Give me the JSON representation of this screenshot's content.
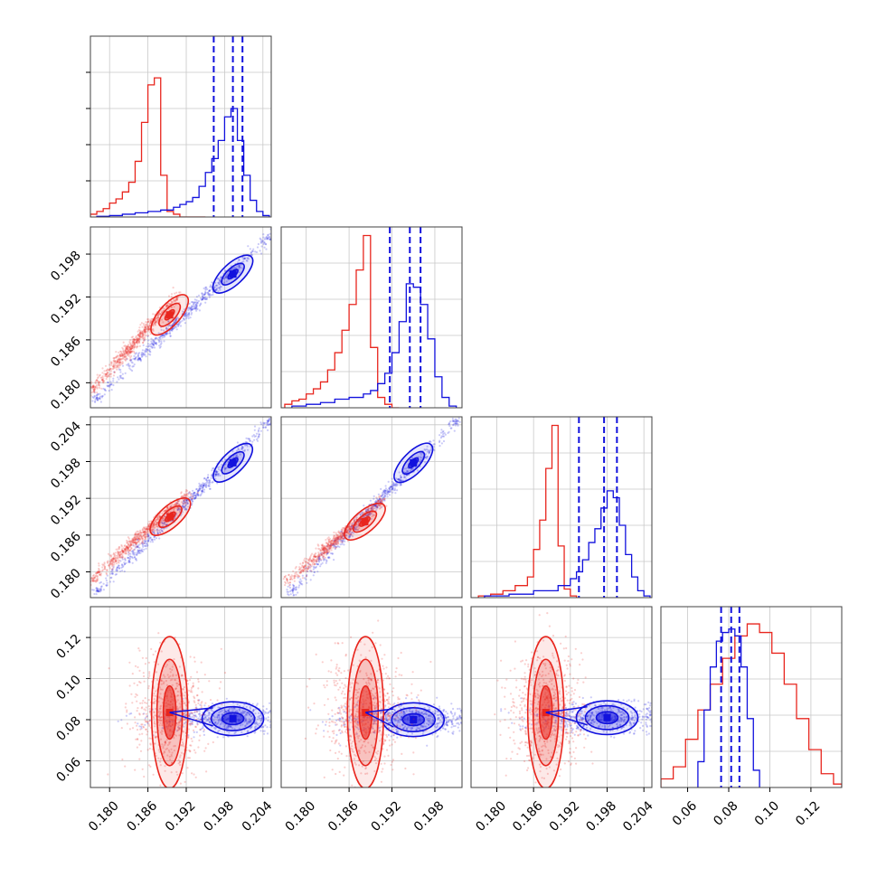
{
  "colors": {
    "red": "#e8261e",
    "blue": "#1111dd",
    "grid": "#c8c8c8",
    "frame": "#404040"
  },
  "chart_data": {
    "type": "corner",
    "grid": true,
    "axes": {
      "ax0": {
        "range": [
          0.177,
          0.2053
        ],
        "ticks": [
          "0.180",
          "0.186",
          "0.192",
          "0.198",
          "0.204"
        ],
        "tick_values": [
          0.18,
          0.186,
          0.192,
          0.198,
          0.204
        ]
      },
      "ax1": {
        "range": [
          0.1765,
          0.2018
        ],
        "ticks": [
          "0.180",
          "0.186",
          "0.192",
          "0.198"
        ],
        "tick_values": [
          0.18,
          0.186,
          0.192,
          0.198
        ]
      },
      "ax2": {
        "range": [
          0.1758,
          0.2053
        ],
        "ticks": [
          "0.180",
          "0.186",
          "0.192",
          "0.198",
          "0.204"
        ],
        "tick_values": [
          0.18,
          0.186,
          0.192,
          0.198,
          0.204
        ]
      },
      "ax3": {
        "range": [
          0.047,
          0.135
        ],
        "ticks": [
          "0.06",
          "0.08",
          "0.10",
          "0.12"
        ],
        "tick_values": [
          0.06,
          0.08,
          0.1,
          0.12
        ]
      }
    },
    "marginals": [
      {
        "axis": "ax0",
        "hist_ymax": 1.3,
        "red": {
          "edges": [
            0.177,
            0.178,
            0.179,
            0.18,
            0.181,
            0.182,
            0.183,
            0.184,
            0.185,
            0.186,
            0.187,
            0.188,
            0.189,
            0.19,
            0.191,
            0.192,
            0.193,
            0.194,
            0.195
          ],
          "counts": [
            0.02,
            0.04,
            0.06,
            0.1,
            0.13,
            0.18,
            0.25,
            0.4,
            0.68,
            0.95,
            1.0,
            0.3,
            0.04,
            0.02,
            0.0,
            0.0,
            0.0,
            0.0
          ]
        },
        "blue": {
          "edges": [
            0.178,
            0.18,
            0.182,
            0.184,
            0.186,
            0.188,
            0.19,
            0.191,
            0.192,
            0.193,
            0.194,
            0.195,
            0.196,
            0.197,
            0.198,
            0.199,
            0.2,
            0.201,
            0.202,
            0.203,
            0.204,
            0.205
          ],
          "counts": [
            0.005,
            0.01,
            0.02,
            0.03,
            0.04,
            0.05,
            0.07,
            0.09,
            0.11,
            0.14,
            0.22,
            0.32,
            0.42,
            0.55,
            0.72,
            0.78,
            0.55,
            0.3,
            0.12,
            0.04,
            0.01
          ]
        },
        "quantiles": [
          0.1963,
          0.1993,
          0.2008
        ]
      },
      {
        "axis": "ax1",
        "hist_ymax": 1.05,
        "red": {
          "edges": [
            0.177,
            0.178,
            0.179,
            0.18,
            0.181,
            0.182,
            0.183,
            0.184,
            0.185,
            0.186,
            0.187,
            0.188,
            0.189,
            0.19,
            0.191,
            0.192,
            0.193
          ],
          "counts": [
            0.02,
            0.04,
            0.05,
            0.08,
            0.11,
            0.15,
            0.22,
            0.32,
            0.45,
            0.6,
            0.8,
            1.0,
            0.35,
            0.06,
            0.02,
            0.0
          ]
        },
        "blue": {
          "edges": [
            0.178,
            0.18,
            0.182,
            0.184,
            0.186,
            0.188,
            0.189,
            0.19,
            0.191,
            0.192,
            0.193,
            0.194,
            0.195,
            0.196,
            0.197,
            0.198,
            0.199,
            0.2,
            0.201
          ],
          "counts": [
            0.01,
            0.02,
            0.03,
            0.05,
            0.06,
            0.08,
            0.1,
            0.14,
            0.2,
            0.32,
            0.5,
            0.72,
            0.7,
            0.6,
            0.4,
            0.18,
            0.06,
            0.01
          ]
        },
        "quantiles": [
          0.1917,
          0.1945,
          0.196
        ]
      },
      {
        "axis": "ax2",
        "hist_ymax": 1.05,
        "red": {
          "edges": [
            0.177,
            0.179,
            0.181,
            0.183,
            0.185,
            0.186,
            0.187,
            0.188,
            0.189,
            0.19,
            0.191,
            0.192,
            0.193
          ],
          "counts": [
            0.01,
            0.02,
            0.04,
            0.07,
            0.12,
            0.28,
            0.45,
            0.75,
            1.0,
            0.3,
            0.05,
            0.01
          ]
        },
        "blue": {
          "edges": [
            0.178,
            0.182,
            0.186,
            0.19,
            0.192,
            0.193,
            0.194,
            0.195,
            0.196,
            0.197,
            0.198,
            0.199,
            0.2,
            0.201,
            0.202,
            0.203,
            0.204,
            0.205
          ],
          "counts": [
            0.01,
            0.02,
            0.04,
            0.07,
            0.11,
            0.15,
            0.22,
            0.32,
            0.4,
            0.52,
            0.62,
            0.58,
            0.42,
            0.25,
            0.12,
            0.04,
            0.01
          ]
        },
        "quantiles": [
          0.1934,
          0.1975,
          0.1996
        ]
      },
      {
        "axis": "ax3",
        "hist_ymax": 1.05,
        "red": {
          "edges": [
            0.047,
            0.053,
            0.059,
            0.065,
            0.071,
            0.077,
            0.083,
            0.089,
            0.095,
            0.101,
            0.107,
            0.113,
            0.119,
            0.125,
            0.131,
            0.135
          ],
          "counts": [
            0.05,
            0.12,
            0.28,
            0.45,
            0.6,
            0.75,
            0.88,
            0.95,
            0.9,
            0.78,
            0.6,
            0.4,
            0.22,
            0.08,
            0.02
          ]
        },
        "blue": {
          "edges": [
            0.065,
            0.068,
            0.071,
            0.074,
            0.077,
            0.08,
            0.083,
            0.086,
            0.089,
            0.092,
            0.095
          ],
          "counts": [
            0.15,
            0.45,
            0.7,
            0.85,
            0.9,
            0.92,
            0.88,
            0.7,
            0.4,
            0.1
          ]
        },
        "quantiles": [
          0.0763,
          0.0812,
          0.0852
        ]
      }
    ],
    "pairs": [
      {
        "x": "ax0",
        "y": "ax1",
        "red_mode": [
          0.1894,
          0.1895
        ],
        "blue_mode": [
          0.1993,
          0.1952
        ],
        "red_cloud": [
          [
            0.1775,
            0.1792
          ],
          [
            0.1905,
            0.1922
          ]
        ],
        "blue_cloud": [
          [
            0.178,
            0.178
          ],
          [
            0.205,
            0.2005
          ]
        ]
      },
      {
        "x": "ax0",
        "y": "ax2",
        "red_mode": [
          0.1895,
          0.189
        ],
        "blue_mode": [
          0.1993,
          0.1978
        ],
        "red_cloud": [
          [
            0.1775,
            0.179
          ],
          [
            0.192,
            0.1925
          ]
        ],
        "blue_cloud": [
          [
            0.178,
            0.177
          ],
          [
            0.205,
            0.2045
          ]
        ]
      },
      {
        "x": "ax1",
        "y": "ax2",
        "red_mode": [
          0.1882,
          0.1882
        ],
        "blue_mode": [
          0.195,
          0.1978
        ],
        "red_cloud": [
          [
            0.1775,
            0.1785
          ],
          [
            0.1905,
            0.1915
          ]
        ],
        "blue_cloud": [
          [
            0.178,
            0.177
          ],
          [
            0.201,
            0.2045
          ]
        ]
      },
      {
        "x": "ax0",
        "y": "ax3",
        "red_mode": [
          0.1894,
          0.0835
        ],
        "blue_mode": [
          0.1993,
          0.0805
        ],
        "red_cloud": [
          [
            0.179,
            0.06
          ],
          [
            0.192,
            0.125
          ]
        ],
        "blue_cloud": [
          [
            0.178,
            0.074
          ],
          [
            0.205,
            0.09
          ]
        ]
      },
      {
        "x": "ax1",
        "y": "ax3",
        "red_mode": [
          0.1883,
          0.0835
        ],
        "blue_mode": [
          0.195,
          0.08
        ],
        "red_cloud": [
          [
            0.178,
            0.06
          ],
          [
            0.191,
            0.125
          ]
        ],
        "blue_cloud": [
          [
            0.1775,
            0.074
          ],
          [
            0.201,
            0.09
          ]
        ]
      },
      {
        "x": "ax2",
        "y": "ax3",
        "red_mode": [
          0.188,
          0.0835
        ],
        "blue_mode": [
          0.198,
          0.081
        ],
        "red_cloud": [
          [
            0.177,
            0.06
          ],
          [
            0.191,
            0.125
          ]
        ],
        "blue_cloud": [
          [
            0.1765,
            0.074
          ],
          [
            0.205,
            0.09
          ]
        ]
      }
    ]
  }
}
